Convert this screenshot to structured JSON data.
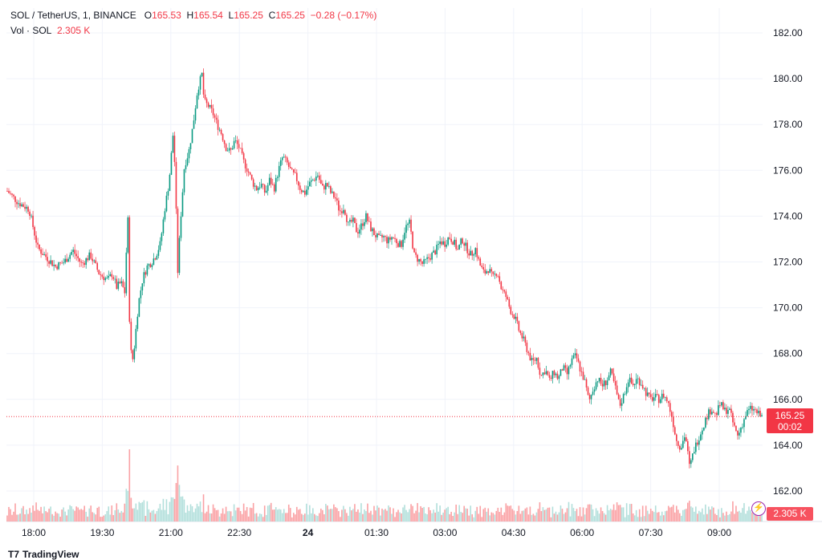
{
  "header": {
    "symbol": "SOL / TetherUS, 1, BINANCE",
    "o_label": "O",
    "o_value": "165.53",
    "h_label": "H",
    "h_value": "165.54",
    "l_label": "L",
    "l_value": "165.25",
    "c_label": "C",
    "c_value": "165.25",
    "change": "−0.28 (−0.17%)",
    "vol_label": "Vol · SOL",
    "vol_value": "2.305 K"
  },
  "price_badge": {
    "price": "165.25",
    "countdown": "00:02"
  },
  "volume_badge": "2.305 K",
  "branding": "TradingView",
  "colors": {
    "up": "#089981",
    "down": "#f23645",
    "up_vol": "#b2dfdb",
    "down_vol": "#faa1a4",
    "grid": "#f0f3fa",
    "text": "#131722"
  },
  "chart_data": {
    "type": "candlestick",
    "y_ticks": [
      "182.00",
      "180.00",
      "178.00",
      "176.00",
      "174.00",
      "172.00",
      "170.00",
      "168.00",
      "166.00",
      "164.00",
      "162.00"
    ],
    "x_ticks": [
      "18:00",
      "19:30",
      "21:00",
      "22:30",
      "24",
      "01:30",
      "03:00",
      "04:30",
      "06:00",
      "07:30",
      "09:00"
    ],
    "ylim": [
      160.5,
      183.5
    ],
    "last_price": 165.25,
    "path": [
      [
        0,
        175.1
      ],
      [
        5,
        174.6
      ],
      [
        10,
        174.3
      ],
      [
        14,
        172.6
      ],
      [
        18,
        172.2
      ],
      [
        22,
        171.8
      ],
      [
        26,
        172.0
      ],
      [
        30,
        172.5
      ],
      [
        34,
        171.9
      ],
      [
        38,
        172.3
      ],
      [
        42,
        171.5
      ],
      [
        46,
        171.2
      ],
      [
        48,
        171.5
      ],
      [
        50,
        170.9
      ],
      [
        52,
        171.1
      ],
      [
        54,
        170.6
      ],
      [
        55,
        174.8
      ],
      [
        56,
        169.0
      ],
      [
        57,
        167.5
      ],
      [
        58,
        168.2
      ],
      [
        60,
        170.2
      ],
      [
        62,
        171.3
      ],
      [
        64,
        171.8
      ],
      [
        66,
        172.0
      ],
      [
        68,
        172.3
      ],
      [
        70,
        172.8
      ],
      [
        72,
        174.3
      ],
      [
        74,
        175.5
      ],
      [
        76,
        177.8
      ],
      [
        77,
        175.0
      ],
      [
        78,
        171.5
      ],
      [
        79,
        173.5
      ],
      [
        81,
        176.2
      ],
      [
        83,
        176.8
      ],
      [
        85,
        178.0
      ],
      [
        87,
        179.5
      ],
      [
        89,
        180.2
      ],
      [
        90,
        179.0
      ],
      [
        92,
        178.8
      ],
      [
        94,
        178.5
      ],
      [
        96,
        178.0
      ],
      [
        98,
        177.6
      ],
      [
        100,
        177.0
      ],
      [
        102,
        176.8
      ],
      [
        104,
        177.3
      ],
      [
        106,
        177.0
      ],
      [
        108,
        176.4
      ],
      [
        110,
        176.0
      ],
      [
        112,
        175.5
      ],
      [
        114,
        175.2
      ],
      [
        116,
        175.4
      ],
      [
        118,
        175.0
      ],
      [
        120,
        175.6
      ],
      [
        122,
        175.2
      ],
      [
        124,
        176.0
      ],
      [
        126,
        176.6
      ],
      [
        128,
        176.3
      ],
      [
        130,
        175.9
      ],
      [
        132,
        175.7
      ],
      [
        134,
        175.2
      ],
      [
        136,
        175.0
      ],
      [
        138,
        175.4
      ],
      [
        140,
        175.6
      ],
      [
        142,
        175.8
      ],
      [
        144,
        175.2
      ],
      [
        146,
        175.4
      ],
      [
        148,
        175.0
      ],
      [
        150,
        174.8
      ],
      [
        152,
        174.2
      ],
      [
        154,
        174.4
      ],
      [
        156,
        173.6
      ],
      [
        158,
        173.8
      ],
      [
        160,
        173.3
      ],
      [
        162,
        173.6
      ],
      [
        164,
        174.0
      ],
      [
        166,
        173.5
      ],
      [
        168,
        173.2
      ],
      [
        170,
        173.0
      ],
      [
        172,
        173.1
      ],
      [
        174,
        172.9
      ],
      [
        176,
        173.1
      ],
      [
        178,
        172.9
      ],
      [
        180,
        172.7
      ],
      [
        182,
        173.5
      ],
      [
        184,
        173.7
      ],
      [
        186,
        172.3
      ],
      [
        188,
        172.1
      ],
      [
        190,
        171.9
      ],
      [
        192,
        172.1
      ],
      [
        194,
        172.3
      ],
      [
        196,
        172.5
      ],
      [
        198,
        172.9
      ],
      [
        200,
        172.8
      ],
      [
        202,
        173.1
      ],
      [
        204,
        172.9
      ],
      [
        206,
        172.5
      ],
      [
        208,
        173.0
      ],
      [
        210,
        172.6
      ],
      [
        212,
        172.3
      ],
      [
        214,
        172.6
      ],
      [
        216,
        171.9
      ],
      [
        218,
        171.5
      ],
      [
        220,
        171.7
      ],
      [
        222,
        171.3
      ],
      [
        224,
        171.6
      ],
      [
        226,
        170.8
      ],
      [
        228,
        170.5
      ],
      [
        230,
        169.9
      ],
      [
        232,
        169.6
      ],
      [
        234,
        169.0
      ],
      [
        236,
        168.6
      ],
      [
        238,
        168.1
      ],
      [
        240,
        167.6
      ],
      [
        242,
        167.8
      ],
      [
        244,
        167.0
      ],
      [
        246,
        167.3
      ],
      [
        248,
        166.8
      ],
      [
        250,
        167.2
      ],
      [
        252,
        166.9
      ],
      [
        254,
        167.4
      ],
      [
        256,
        167.1
      ],
      [
        258,
        167.7
      ],
      [
        260,
        167.9
      ],
      [
        262,
        167.3
      ],
      [
        264,
        166.8
      ],
      [
        266,
        165.9
      ],
      [
        268,
        166.5
      ],
      [
        270,
        166.9
      ],
      [
        272,
        166.6
      ],
      [
        274,
        166.8
      ],
      [
        276,
        167.2
      ],
      [
        278,
        166.5
      ],
      [
        280,
        165.7
      ],
      [
        282,
        166.2
      ],
      [
        284,
        166.9
      ],
      [
        286,
        166.6
      ],
      [
        288,
        166.9
      ],
      [
        290,
        166.7
      ],
      [
        292,
        166.3
      ],
      [
        294,
        166.0
      ],
      [
        296,
        166.1
      ],
      [
        298,
        166.0
      ],
      [
        300,
        166.2
      ],
      [
        302,
        165.9
      ],
      [
        304,
        165.2
      ],
      [
        306,
        164.2
      ],
      [
        308,
        163.9
      ],
      [
        310,
        164.5
      ],
      [
        312,
        163.0
      ],
      [
        314,
        163.8
      ],
      [
        316,
        164.3
      ],
      [
        318,
        164.8
      ],
      [
        320,
        165.3
      ],
      [
        322,
        165.6
      ],
      [
        324,
        165.3
      ],
      [
        326,
        165.8
      ],
      [
        328,
        165.5
      ],
      [
        330,
        165.6
      ],
      [
        332,
        164.9
      ],
      [
        334,
        164.4
      ],
      [
        336,
        164.9
      ],
      [
        338,
        165.4
      ],
      [
        340,
        165.6
      ],
      [
        342,
        165.5
      ],
      [
        344,
        165.3
      ],
      [
        345,
        165.25
      ]
    ]
  }
}
